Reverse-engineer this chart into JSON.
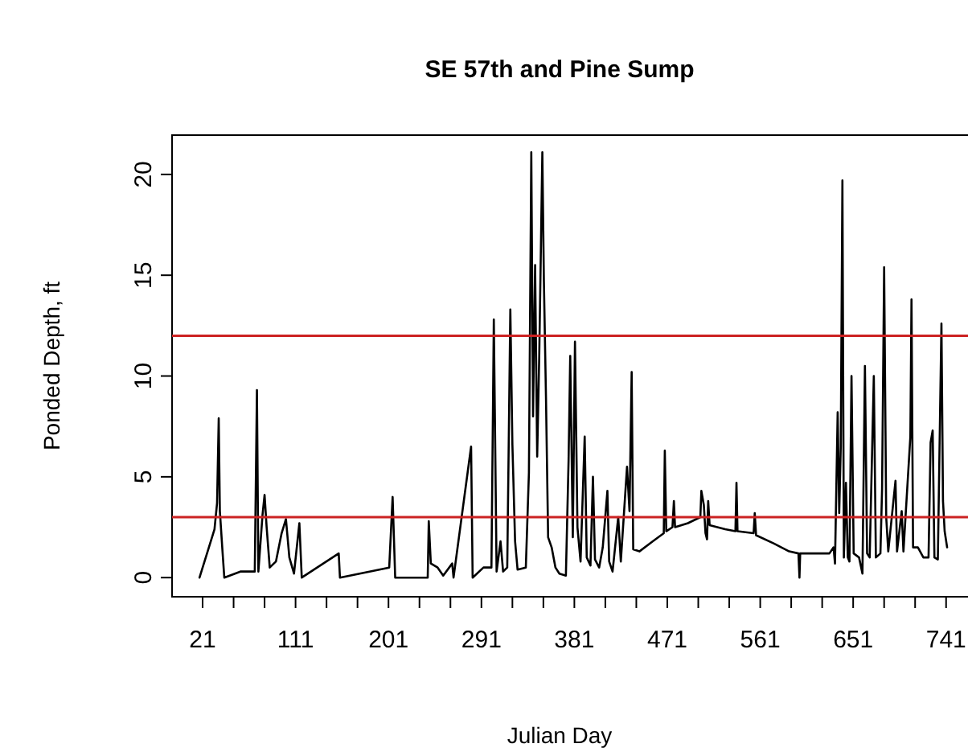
{
  "chart_data": {
    "type": "line",
    "title": "SE 57th and Pine Sump",
    "xlabel": "Julian Day",
    "ylabel": "Ponded Depth, ft",
    "xlim": [
      -8.6,
      770
    ],
    "ylim": [
      -0.95,
      21.95
    ],
    "xticks": [
      21,
      {
        "value": 51,
        "label": null
      },
      {
        "value": 81,
        "label": null
      },
      111,
      {
        "value": 141,
        "label": null
      },
      {
        "value": 171,
        "label": null
      },
      201,
      {
        "value": 231,
        "label": null
      },
      {
        "value": 261,
        "label": null
      },
      291,
      {
        "value": 321,
        "label": null
      },
      {
        "value": 351,
        "label": null
      },
      381,
      {
        "value": 411,
        "label": null
      },
      {
        "value": 441,
        "label": null
      },
      471,
      {
        "value": 501,
        "label": null
      },
      {
        "value": 531,
        "label": null
      },
      561,
      {
        "value": 591,
        "label": null
      },
      {
        "value": 621,
        "label": null
      },
      651,
      {
        "value": 681,
        "label": null
      },
      {
        "value": 711,
        "label": null
      },
      741
    ],
    "yticks": [
      0,
      5,
      10,
      15,
      20
    ],
    "grid": false,
    "marker": "none",
    "line_style": "solid",
    "ref_lines": [
      {
        "axis": "y",
        "value": 12,
        "color": "#cc2222"
      },
      {
        "axis": "y",
        "value": 3,
        "color": "#cc2222"
      }
    ],
    "series": [
      {
        "color": "#000000",
        "x": [
          18,
          32.5,
          35,
          36.6,
          37.7,
          40,
          42,
          57.5,
          71.5,
          73.6,
          75,
          79,
          81,
          83,
          86,
          92,
          97.5,
          101.7,
          105,
          109.5,
          114.7,
          117,
          152.8,
          154,
          201.7,
          205,
          207.5,
          239,
          240,
          242,
          248.6,
          254,
          262.7,
          264,
          281,
          282.5,
          293,
          300.7,
          303,
          305.7,
          309.5,
          312,
          316,
          319,
          321,
          323.6,
          326,
          334,
          337,
          339.3,
          341,
          343,
          345,
          347,
          350,
          351.5,
          353.5,
          355.6,
          359,
          362.7,
          366.5,
          372.8,
          375.4,
          377,
          379.5,
          381.6,
          384,
          387,
          391,
          393,
          396.6,
          399,
          401,
          405,
          408.5,
          413,
          414.7,
          418,
          423.5,
          426,
          432,
          434.4,
          436.5,
          438,
          444,
          457,
          467.6,
          468.6,
          470,
          476,
          477.4,
          478.5,
          491,
          503,
          504,
          506.4,
          508,
          509.5,
          510.6,
          512,
          527,
          537,
          538,
          539,
          554.6,
          555.7,
          557,
          574,
          589,
          598,
          599,
          599.7,
          628,
          632,
          633.4,
          636,
          637.5,
          639,
          640.6,
          642,
          644,
          645.8,
          647.4,
          649.4,
          651.5,
          656.7,
          660,
          662.4,
          664.5,
          667,
          671,
          673,
          677.4,
          679,
          681,
          683,
          685,
          692,
          693.5,
          698,
          699.7,
          706.4,
          707.5,
          709,
          713.7,
          719,
          724,
          726,
          728,
          729.7,
          733,
          736.5,
          738,
          739.6,
          742
        ],
        "values": [
          0,
          2.4,
          3.7,
          7.9,
          3.3,
          1.5,
          0,
          0.3,
          0.3,
          9.3,
          0.3,
          3.1,
          4.1,
          2.5,
          0.5,
          0.8,
          2.2,
          2.9,
          1.0,
          0.2,
          2.7,
          0,
          1.2,
          0,
          0.5,
          4.0,
          0,
          0,
          2.8,
          0.7,
          0.5,
          0.1,
          0.7,
          0,
          6.5,
          0,
          0.5,
          0.5,
          12.8,
          0.3,
          1.8,
          0.3,
          0.5,
          13.3,
          6.6,
          1.8,
          0.4,
          0.5,
          5.2,
          21.1,
          8,
          15.5,
          6,
          11,
          21.1,
          14.7,
          9,
          2,
          1.5,
          0.5,
          0.2,
          0.1,
          5.8,
          11.0,
          2,
          11.7,
          2.5,
          0.8,
          7.0,
          1,
          0.6,
          5.0,
          0.9,
          0.5,
          1.5,
          4.3,
          0.8,
          0.3,
          3,
          0.8,
          5.5,
          3.3,
          10.2,
          1.4,
          1.3,
          1.8,
          2.2,
          6.3,
          2.3,
          2.5,
          3.8,
          2.5,
          2.7,
          3.0,
          4.3,
          3.6,
          2.2,
          1.9,
          3.8,
          2.6,
          2.4,
          2.3,
          4.7,
          2.3,
          2.2,
          3.2,
          2.1,
          1.7,
          1.3,
          1.2,
          0,
          1.2,
          1.2,
          1.5,
          0.7,
          8.2,
          3.2,
          6.5,
          19.7,
          1,
          4.7,
          1.0,
          0.8,
          10,
          1.2,
          1.0,
          0.2,
          10.5,
          1.2,
          1.0,
          10,
          1.0,
          1.2,
          4.4,
          15.4,
          3.0,
          1.3,
          4.8,
          1.3,
          3.3,
          1.3,
          7.0,
          13.8,
          1.5,
          1.5,
          1.0,
          1.0,
          6.7,
          7.3,
          1.0,
          0.9,
          12.6,
          3.8,
          2.3,
          1.5
        ]
      }
    ]
  }
}
